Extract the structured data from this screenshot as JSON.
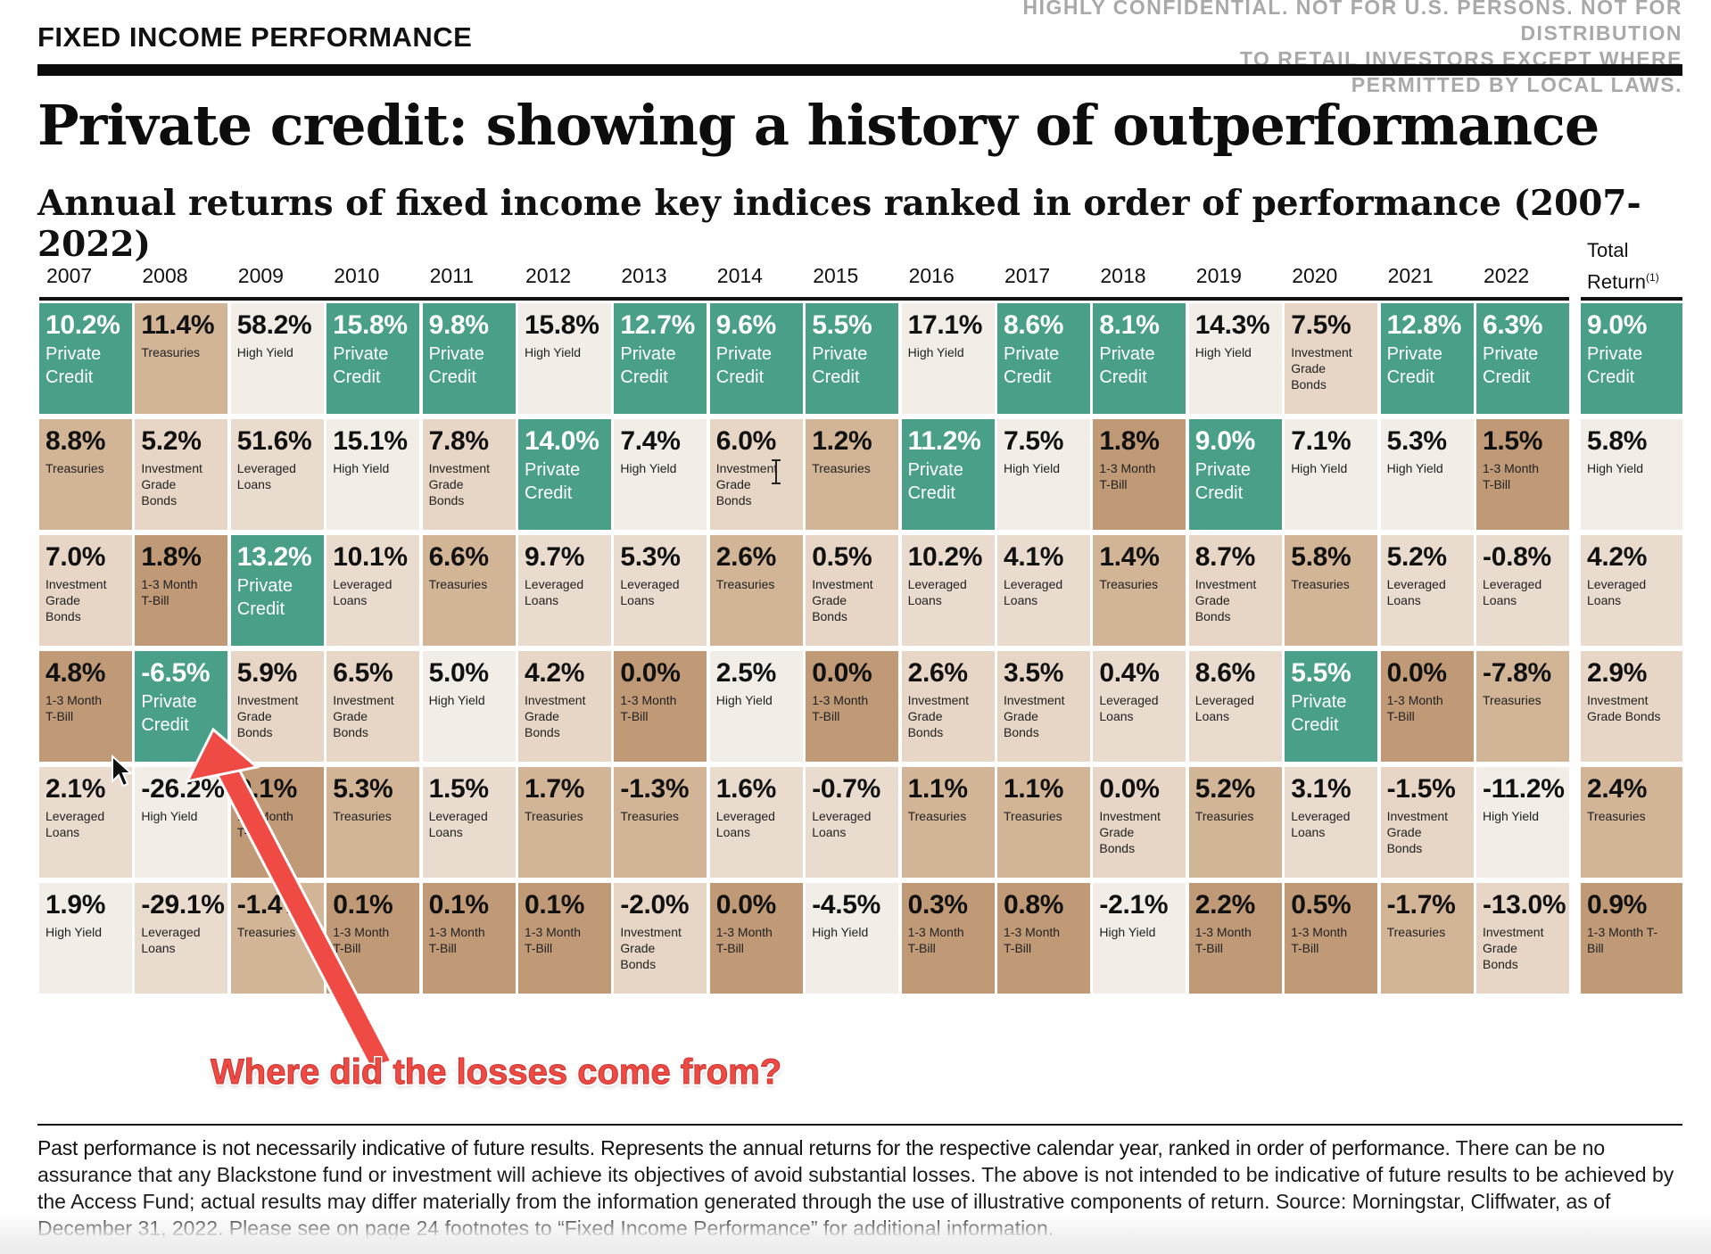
{
  "header": {
    "section_label": "FIXED INCOME PERFORMANCE",
    "confidential_lines": [
      "HIGHLY CONFIDENTIAL. NOT FOR U.S. PERSONS. NOT FOR DISTRIBUTION",
      "TO RETAIL INVESTORS EXCEPT WHERE",
      "PERMITTED BY LOCAL LAWS."
    ],
    "title": "Private credit: showing a history of outperformance",
    "subtitle": "Annual returns of fixed income key indices ranked in order of performance (2007-2022)"
  },
  "colors": {
    "private_credit": "#4a9f89",
    "treasuries": "#d2b497",
    "investment_grade_bonds": "#e7d6c6",
    "one_to_three_month_tbill": "#c09a77",
    "high_yield": "#f2ede6",
    "leveraged_loans": "#e9dccf",
    "annotation": "#ef4a44"
  },
  "chart_data": {
    "type": "table",
    "title": "Annual returns of fixed income key indices ranked in order of performance (2007-2022)",
    "total_header": "Total Return",
    "total_header_sup": "(1)",
    "columns": [
      "2007",
      "2008",
      "2009",
      "2010",
      "2011",
      "2012",
      "2013",
      "2014",
      "2015",
      "2016",
      "2017",
      "2018",
      "2019",
      "2020",
      "2021",
      "2022"
    ],
    "ranks": [
      [
        {
          "value": "10.2%",
          "label": "Private Credit",
          "cat": "pc"
        },
        {
          "value": "11.4%",
          "label": "Treasuries",
          "cat": "tr"
        },
        {
          "value": "58.2%",
          "label": "High Yield",
          "cat": "hy"
        },
        {
          "value": "15.8%",
          "label": "Private Credit",
          "cat": "pc"
        },
        {
          "value": "9.8%",
          "label": "Private Credit",
          "cat": "pc"
        },
        {
          "value": "15.8%",
          "label": "High Yield",
          "cat": "hy"
        },
        {
          "value": "12.7%",
          "label": "Private Credit",
          "cat": "pc"
        },
        {
          "value": "9.6%",
          "label": "Private Credit",
          "cat": "pc"
        },
        {
          "value": "5.5%",
          "label": "Private Credit",
          "cat": "pc"
        },
        {
          "value": "17.1%",
          "label": "High Yield",
          "cat": "hy"
        },
        {
          "value": "8.6%",
          "label": "Private Credit",
          "cat": "pc"
        },
        {
          "value": "8.1%",
          "label": "Private Credit",
          "cat": "pc"
        },
        {
          "value": "14.3%",
          "label": "High Yield",
          "cat": "hy"
        },
        {
          "value": "7.5%",
          "label": "Investment Grade Bonds",
          "cat": "ig"
        },
        {
          "value": "12.8%",
          "label": "Private Credit",
          "cat": "pc"
        },
        {
          "value": "6.3%",
          "label": "Private Credit",
          "cat": "pc"
        }
      ],
      [
        {
          "value": "8.8%",
          "label": "Treasuries",
          "cat": "tr"
        },
        {
          "value": "5.2%",
          "label": "Investment Grade Bonds",
          "cat": "ig"
        },
        {
          "value": "51.6%",
          "label": "Leveraged Loans",
          "cat": "ll"
        },
        {
          "value": "15.1%",
          "label": "High Yield",
          "cat": "hy"
        },
        {
          "value": "7.8%",
          "label": "Investment Grade Bonds",
          "cat": "ig"
        },
        {
          "value": "14.0%",
          "label": "Private Credit",
          "cat": "pc"
        },
        {
          "value": "7.4%",
          "label": "High Yield",
          "cat": "hy"
        },
        {
          "value": "6.0%",
          "label": "Investment Grade Bonds",
          "cat": "ig"
        },
        {
          "value": "1.2%",
          "label": "Treasuries",
          "cat": "tr"
        },
        {
          "value": "11.2%",
          "label": "Private Credit",
          "cat": "pc"
        },
        {
          "value": "7.5%",
          "label": "High Yield",
          "cat": "hy"
        },
        {
          "value": "1.8%",
          "label": "1-3 Month T-Bill",
          "cat": "tb"
        },
        {
          "value": "9.0%",
          "label": "Private Credit",
          "cat": "pc"
        },
        {
          "value": "7.1%",
          "label": "High Yield",
          "cat": "hy"
        },
        {
          "value": "5.3%",
          "label": "High Yield",
          "cat": "hy"
        },
        {
          "value": "1.5%",
          "label": "1-3 Month T-Bill",
          "cat": "tb"
        }
      ],
      [
        {
          "value": "7.0%",
          "label": "Investment Grade Bonds",
          "cat": "ig"
        },
        {
          "value": "1.8%",
          "label": "1-3 Month T-Bill",
          "cat": "tb"
        },
        {
          "value": "13.2%",
          "label": "Private Credit",
          "cat": "pc"
        },
        {
          "value": "10.1%",
          "label": "Leveraged Loans",
          "cat": "ll"
        },
        {
          "value": "6.6%",
          "label": "Treasuries",
          "cat": "tr"
        },
        {
          "value": "9.7%",
          "label": "Leveraged Loans",
          "cat": "ll"
        },
        {
          "value": "5.3%",
          "label": "Leveraged Loans",
          "cat": "ll"
        },
        {
          "value": "2.6%",
          "label": "Treasuries",
          "cat": "tr"
        },
        {
          "value": "0.5%",
          "label": "Investment Grade Bonds",
          "cat": "ig"
        },
        {
          "value": "10.2%",
          "label": "Leveraged Loans",
          "cat": "ll"
        },
        {
          "value": "4.1%",
          "label": "Leveraged Loans",
          "cat": "ll"
        },
        {
          "value": "1.4%",
          "label": "Treasuries",
          "cat": "tr"
        },
        {
          "value": "8.7%",
          "label": "Investment Grade Bonds",
          "cat": "ig"
        },
        {
          "value": "5.8%",
          "label": "Treasuries",
          "cat": "tr"
        },
        {
          "value": "5.2%",
          "label": "Leveraged Loans",
          "cat": "ll"
        },
        {
          "value": "-0.8%",
          "label": "Leveraged Loans",
          "cat": "ll"
        }
      ],
      [
        {
          "value": "4.8%",
          "label": "1-3 Month T-Bill",
          "cat": "tb"
        },
        {
          "value": "-6.5%",
          "label": "Private Credit",
          "cat": "pc"
        },
        {
          "value": "5.9%",
          "label": "Investment Grade Bonds",
          "cat": "ig"
        },
        {
          "value": "6.5%",
          "label": "Investment Grade Bonds",
          "cat": "ig"
        },
        {
          "value": "5.0%",
          "label": "High Yield",
          "cat": "hy"
        },
        {
          "value": "4.2%",
          "label": "Investment Grade Bonds",
          "cat": "ig"
        },
        {
          "value": "0.0%",
          "label": "1-3 Month T-Bill",
          "cat": "tb"
        },
        {
          "value": "2.5%",
          "label": "High Yield",
          "cat": "hy"
        },
        {
          "value": "0.0%",
          "label": "1-3 Month T-Bill",
          "cat": "tb"
        },
        {
          "value": "2.6%",
          "label": "Investment Grade Bonds",
          "cat": "ig"
        },
        {
          "value": "3.5%",
          "label": "Investment Grade Bonds",
          "cat": "ig"
        },
        {
          "value": "0.4%",
          "label": "Leveraged Loans",
          "cat": "ll"
        },
        {
          "value": "8.6%",
          "label": "Leveraged Loans",
          "cat": "ll"
        },
        {
          "value": "5.5%",
          "label": "Private Credit",
          "cat": "pc"
        },
        {
          "value": "0.0%",
          "label": "1-3 Month T-Bill",
          "cat": "tb"
        },
        {
          "value": "-7.8%",
          "label": "Treasuries",
          "cat": "tr"
        }
      ],
      [
        {
          "value": "2.1%",
          "label": "Leveraged Loans",
          "cat": "ll"
        },
        {
          "value": "-26.2%",
          "label": "High Yield",
          "cat": "hy"
        },
        {
          "value": "0.1%",
          "label": "1-3 Month T-Bill",
          "cat": "tb"
        },
        {
          "value": "5.3%",
          "label": "Treasuries",
          "cat": "tr"
        },
        {
          "value": "1.5%",
          "label": "Leveraged Loans",
          "cat": "ll"
        },
        {
          "value": "1.7%",
          "label": "Treasuries",
          "cat": "tr"
        },
        {
          "value": "-1.3%",
          "label": "Treasuries",
          "cat": "tr"
        },
        {
          "value": "1.6%",
          "label": "Leveraged Loans",
          "cat": "ll"
        },
        {
          "value": "-0.7%",
          "label": "Leveraged Loans",
          "cat": "ll"
        },
        {
          "value": "1.1%",
          "label": "Treasuries",
          "cat": "tr"
        },
        {
          "value": "1.1%",
          "label": "Treasuries",
          "cat": "tr"
        },
        {
          "value": "0.0%",
          "label": "Investment Grade Bonds",
          "cat": "ig"
        },
        {
          "value": "5.2%",
          "label": "Treasuries",
          "cat": "tr"
        },
        {
          "value": "3.1%",
          "label": "Leveraged Loans",
          "cat": "ll"
        },
        {
          "value": "-1.5%",
          "label": "Investment Grade Bonds",
          "cat": "ig"
        },
        {
          "value": "-11.2%",
          "label": "High Yield",
          "cat": "hy"
        }
      ],
      [
        {
          "value": "1.9%",
          "label": "High Yield",
          "cat": "hy"
        },
        {
          "value": "-29.1%",
          "label": "Leveraged Loans",
          "cat": "ll"
        },
        {
          "value": "-1.4%",
          "label": "Treasuries",
          "cat": "tr"
        },
        {
          "value": "0.1%",
          "label": "1-3 Month T-Bill",
          "cat": "tb"
        },
        {
          "value": "0.1%",
          "label": "1-3 Month T-Bill",
          "cat": "tb"
        },
        {
          "value": "0.1%",
          "label": "1-3 Month T-Bill",
          "cat": "tb"
        },
        {
          "value": "-2.0%",
          "label": "Investment Grade Bonds",
          "cat": "ig"
        },
        {
          "value": "0.0%",
          "label": "1-3 Month T-Bill",
          "cat": "tb"
        },
        {
          "value": "-4.5%",
          "label": "High Yield",
          "cat": "hy"
        },
        {
          "value": "0.3%",
          "label": "1-3 Month T-Bill",
          "cat": "tb"
        },
        {
          "value": "0.8%",
          "label": "1-3 Month T-Bill",
          "cat": "tb"
        },
        {
          "value": "-2.1%",
          "label": "High Yield",
          "cat": "hy"
        },
        {
          "value": "2.2%",
          "label": "1-3 Month T-Bill",
          "cat": "tb"
        },
        {
          "value": "0.5%",
          "label": "1-3 Month T-Bill",
          "cat": "tb"
        },
        {
          "value": "-1.7%",
          "label": "Treasuries",
          "cat": "tr"
        },
        {
          "value": "-13.0%",
          "label": "Investment Grade Bonds",
          "cat": "ig"
        }
      ]
    ],
    "total_return": [
      {
        "value": "9.0%",
        "label": "Private Credit",
        "cat": "pc"
      },
      {
        "value": "5.8%",
        "label": "High Yield",
        "cat": "hy"
      },
      {
        "value": "4.2%",
        "label": "Leveraged Loans",
        "cat": "ll"
      },
      {
        "value": "2.9%",
        "label": "Investment Grade Bonds",
        "cat": "ig"
      },
      {
        "value": "2.4%",
        "label": "Treasuries",
        "cat": "tr"
      },
      {
        "value": "0.9%",
        "label": "1-3 Month T-Bill",
        "cat": "tb"
      }
    ]
  },
  "annotation": {
    "text": "Where did the losses come from?"
  },
  "footer": {
    "bold_text": "Past performance is not necessarily indicative of future results. Represents the annual returns for the respective calendar year, ranked in order of performance.",
    "body_text": " There can be no assurance that any Blackstone fund or investment will achieve its objectives of avoid substantial losses. The above is not intended to be indicative of future results to be achieved by the Access Fund; actual results may differ materially from the information generated through the use of illustrative components of return. Source: Morningstar, Cliffwater, as of December 31, 2022. Please see on page 24 footnotes to “Fixed Income Performance” for additional information."
  }
}
